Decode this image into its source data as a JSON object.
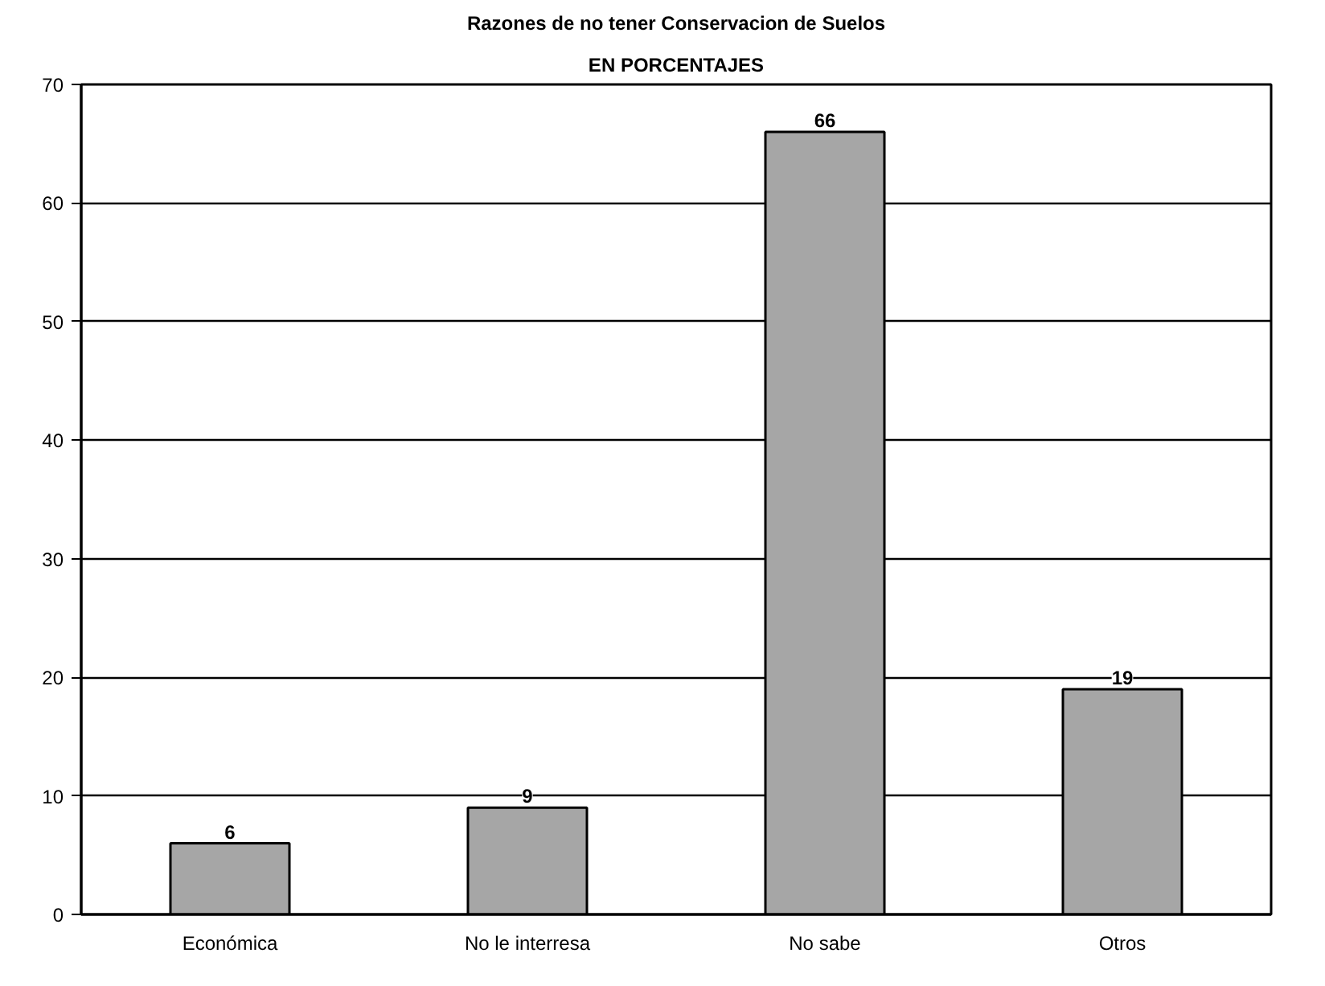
{
  "chart_data": {
    "type": "bar",
    "title": "Razones de no tener Conservacion de Suelos",
    "subtitle": "EN PORCENTAJES",
    "categories": [
      "Económica",
      "No le interresa",
      "No sabe",
      "Otros"
    ],
    "values": [
      6,
      9,
      66,
      19
    ],
    "color": "#a6a6a6",
    "ylim": [
      0,
      70
    ],
    "yticks": [
      0,
      10,
      20,
      30,
      40,
      50,
      60,
      70
    ],
    "grid": "y",
    "data_labels": true
  }
}
